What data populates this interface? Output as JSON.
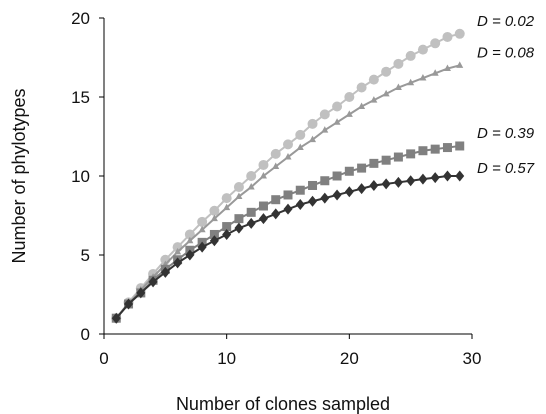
{
  "chart_data": {
    "type": "line",
    "title": "",
    "xlabel": "Number of clones sampled",
    "ylabel": "Number of phylotypes",
    "xlim": [
      0,
      30
    ],
    "ylim": [
      0,
      20
    ],
    "xticks": [
      0,
      10,
      20,
      30
    ],
    "yticks": [
      0,
      5,
      10,
      15,
      20
    ],
    "grid": false,
    "x": [
      1,
      2,
      3,
      4,
      5,
      6,
      7,
      8,
      9,
      10,
      11,
      12,
      13,
      14,
      15,
      16,
      17,
      18,
      19,
      20,
      21,
      22,
      23,
      24,
      25,
      26,
      27,
      28,
      29
    ],
    "series": [
      {
        "name": "D = 0.02",
        "marker": "circle",
        "color": "#c0c0c0",
        "values": [
          1.0,
          2.0,
          2.9,
          3.8,
          4.7,
          5.5,
          6.3,
          7.1,
          7.8,
          8.6,
          9.3,
          10.0,
          10.7,
          11.4,
          12.0,
          12.6,
          13.3,
          13.9,
          14.4,
          15.0,
          15.6,
          16.1,
          16.6,
          17.1,
          17.6,
          18.0,
          18.4,
          18.8,
          19.0
        ]
      },
      {
        "name": "D = 0.08",
        "marker": "triangle",
        "color": "#999999",
        "values": [
          1.0,
          1.9,
          2.8,
          3.6,
          4.4,
          5.2,
          5.9,
          6.6,
          7.3,
          8.0,
          8.7,
          9.3,
          10.0,
          10.6,
          11.2,
          11.8,
          12.3,
          12.9,
          13.4,
          13.9,
          14.4,
          14.8,
          15.2,
          15.6,
          15.9,
          16.2,
          16.5,
          16.8,
          17.0
        ]
      },
      {
        "name": "D = 0.39",
        "marker": "square",
        "color": "#808080",
        "values": [
          1.0,
          1.9,
          2.6,
          3.4,
          4.1,
          4.7,
          5.3,
          5.8,
          6.3,
          6.8,
          7.3,
          7.7,
          8.1,
          8.5,
          8.8,
          9.1,
          9.4,
          9.7,
          10.0,
          10.3,
          10.5,
          10.8,
          11.0,
          11.2,
          11.4,
          11.6,
          11.7,
          11.8,
          11.9
        ]
      },
      {
        "name": "D = 0.57",
        "marker": "diamond",
        "color": "#333333",
        "values": [
          1.0,
          1.9,
          2.6,
          3.3,
          3.9,
          4.5,
          5.0,
          5.5,
          5.9,
          6.3,
          6.7,
          7.0,
          7.3,
          7.6,
          7.9,
          8.2,
          8.4,
          8.6,
          8.8,
          9.0,
          9.2,
          9.4,
          9.5,
          9.6,
          9.7,
          9.8,
          9.9,
          10.0,
          10.0
        ]
      }
    ]
  }
}
